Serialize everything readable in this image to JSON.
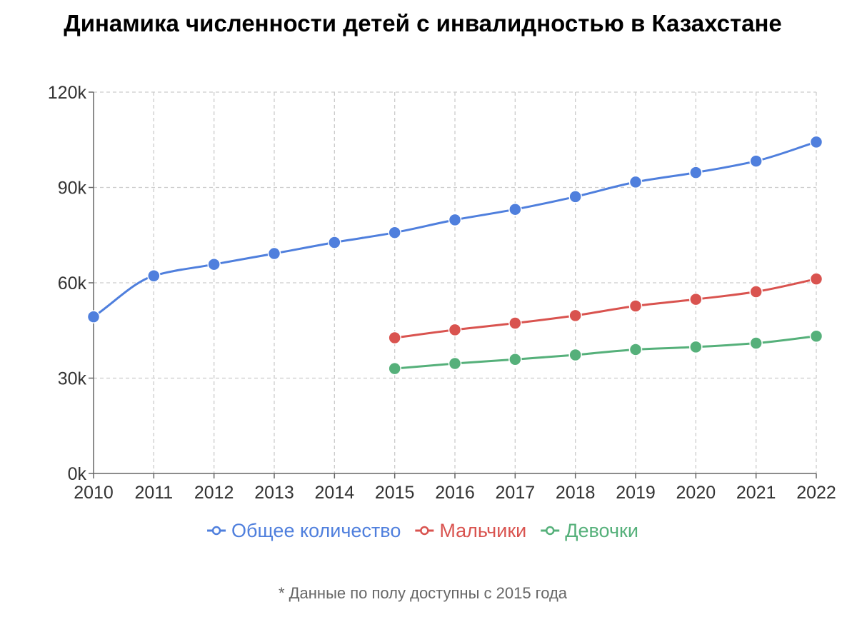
{
  "chart_data": {
    "type": "line",
    "title": "Динамика численности детей с инвалидностью в Казахстане",
    "x": [
      2010,
      2011,
      2012,
      2013,
      2014,
      2015,
      2016,
      2017,
      2018,
      2019,
      2020,
      2021,
      2022
    ],
    "x_tick_labels": [
      "2010",
      "2011",
      "2012",
      "2013",
      "2014",
      "2015",
      "2016",
      "2017",
      "2018",
      "2019",
      "2020",
      "2021",
      "2022"
    ],
    "y_ticks": [
      0,
      30000,
      60000,
      90000,
      120000
    ],
    "y_tick_labels": [
      "0k",
      "30k",
      "60k",
      "90k",
      "120k"
    ],
    "ylim": [
      0,
      120000
    ],
    "grid": true,
    "legend_position": "bottom",
    "series": [
      {
        "name": "Общее количество",
        "color": "#4f7fdd",
        "values": [
          49300,
          62200,
          65800,
          69200,
          72700,
          75800,
          79800,
          83100,
          87100,
          91700,
          94700,
          98300,
          104300
        ]
      },
      {
        "name": "Мальчики",
        "color": "#d9534f",
        "values": [
          null,
          null,
          null,
          null,
          null,
          42700,
          45200,
          47300,
          49700,
          52700,
          54800,
          57200,
          61200
        ]
      },
      {
        "name": "Девочки",
        "color": "#55b07a",
        "values": [
          null,
          null,
          null,
          null,
          null,
          33000,
          34600,
          35900,
          37300,
          39000,
          39800,
          41000,
          43200
        ]
      }
    ]
  },
  "footnote": "* Данные по полу доступны с 2015 года"
}
